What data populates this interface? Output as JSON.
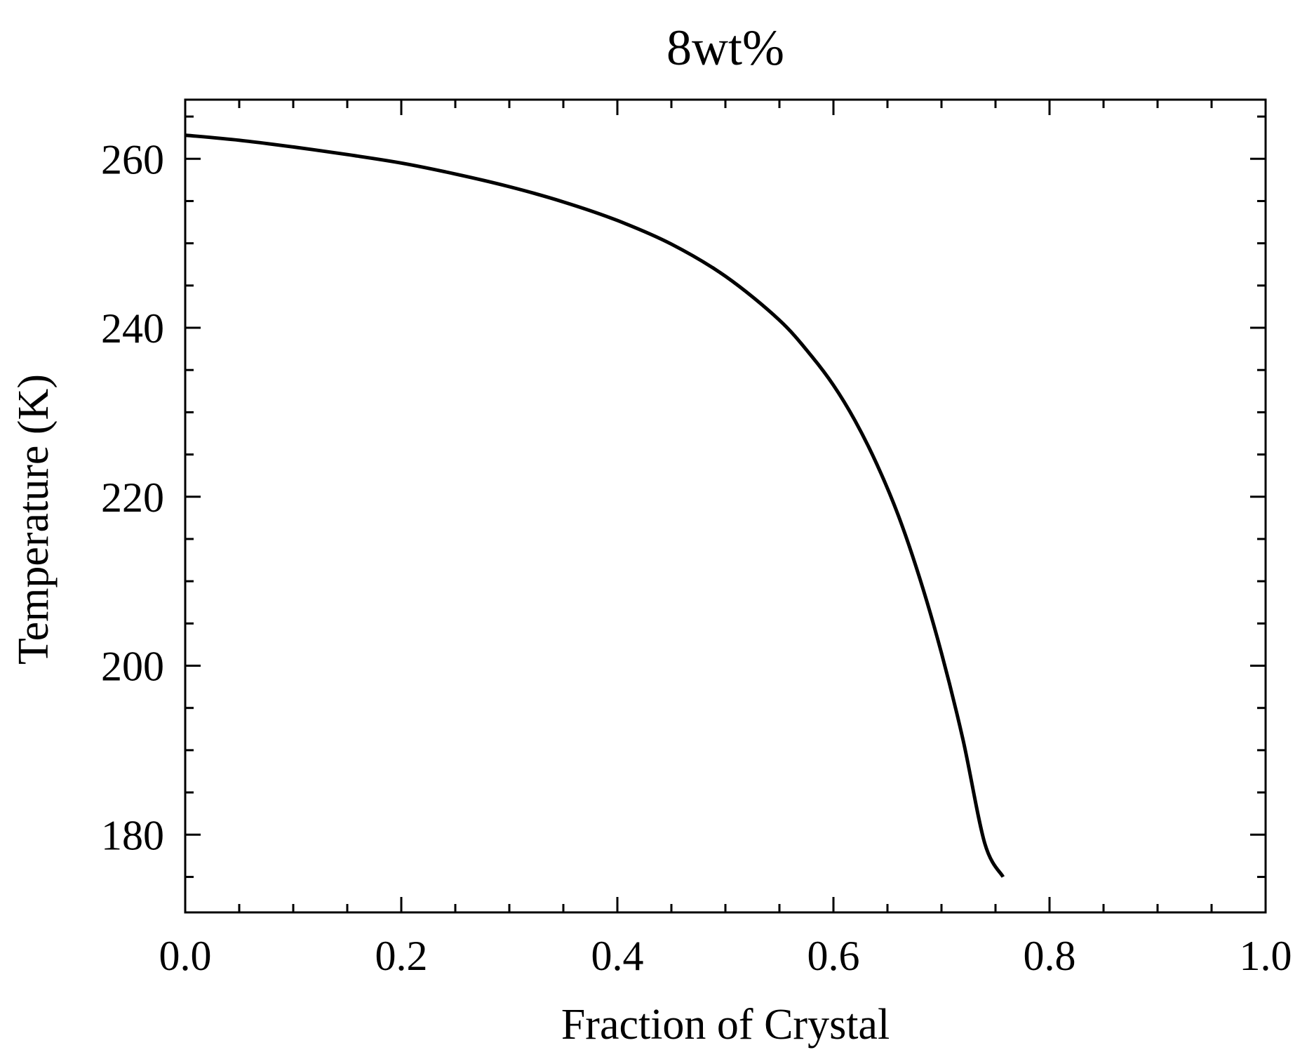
{
  "chart_data": {
    "type": "line",
    "title": "8wt%",
    "xlabel": "Fraction of Crystal",
    "ylabel": "Temperature (K)",
    "xlim": [
      0.0,
      1.0
    ],
    "ylim": [
      170.8,
      267.0
    ],
    "xticks": [
      0.0,
      0.2,
      0.4,
      0.6,
      0.8,
      1.0
    ],
    "xtick_labels": [
      "0.0",
      "0.2",
      "0.4",
      "0.6",
      "0.8",
      "1.0"
    ],
    "yticks": [
      180,
      200,
      220,
      240,
      260
    ],
    "ytick_labels": [
      "180",
      "200",
      "220",
      "240",
      "260"
    ],
    "x_minor_step": 0.05,
    "y_minor_step": 5,
    "grid": false,
    "legend": "none",
    "line_color": "#000000",
    "series": [
      {
        "x": [
          0.0,
          0.05,
          0.1,
          0.15,
          0.2,
          0.25,
          0.3,
          0.35,
          0.4,
          0.45,
          0.5,
          0.55,
          0.58,
          0.6,
          0.62,
          0.64,
          0.66,
          0.68,
          0.7,
          0.72,
          0.74,
          0.757
        ],
        "y": [
          262.8,
          262.2,
          261.4,
          260.5,
          259.5,
          258.2,
          256.7,
          254.9,
          252.7,
          249.9,
          246.1,
          240.9,
          236.6,
          233.2,
          229.0,
          223.9,
          217.8,
          210.3,
          201.5,
          191.2,
          179.0,
          175.0
        ]
      }
    ]
  }
}
